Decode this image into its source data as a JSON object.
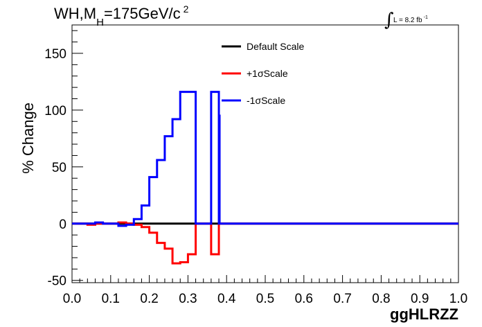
{
  "chart_data": {
    "type": "line",
    "title": "WH,M",
    "title_sub": "H",
    "title_rest": "=175GeV/c",
    "title_sup": "2",
    "lumi_main": "L = 8.2 fb",
    "lumi_sup": "-1",
    "xlabel": "ggHLRZZ",
    "ylabel": "% Change",
    "xlim": [
      0,
      1
    ],
    "ylim": [
      -52,
      175
    ],
    "x_ticks": [
      0.0,
      0.1,
      0.2,
      0.3,
      0.4,
      0.5,
      0.6,
      0.7,
      0.8,
      0.9,
      1.0
    ],
    "x_tick_labels": [
      "0.0",
      "0.1",
      "0.2",
      "0.3",
      "0.4",
      "0.5",
      "0.6",
      "0.7",
      "0.8",
      "0.9",
      "1.0"
    ],
    "y_ticks": [
      -50,
      0,
      50,
      100,
      150
    ],
    "y_tick_labels": [
      "-50",
      "0",
      "50",
      "100",
      "150"
    ],
    "grid": false,
    "legend_position": "top-center",
    "bin_edges": [
      0.0,
      0.02,
      0.04,
      0.06,
      0.08,
      0.1,
      0.12,
      0.14,
      0.16,
      0.18,
      0.2,
      0.22,
      0.24,
      0.26,
      0.28,
      0.3,
      0.32,
      0.34,
      0.36,
      0.38,
      0.4,
      0.42,
      0.44,
      0.46,
      0.48,
      0.5,
      0.52,
      0.54,
      0.56,
      0.58,
      0.6,
      0.62,
      0.64,
      0.66,
      0.68,
      0.7,
      0.72,
      0.74,
      0.76,
      0.78,
      0.8,
      0.82,
      0.84,
      0.86,
      0.88,
      0.9,
      0.92,
      0.94,
      0.96,
      0.98,
      1.0
    ],
    "series": [
      {
        "name": "Default Scale",
        "color": "#000000",
        "values": [
          0,
          0,
          0,
          0,
          0,
          0,
          0,
          0,
          0,
          0,
          0,
          0,
          0,
          0,
          0,
          0,
          0,
          0,
          0,
          0,
          0,
          0,
          0,
          0,
          0,
          0,
          0,
          0,
          0,
          0,
          0,
          0,
          0,
          0,
          0,
          0,
          0,
          0,
          0,
          0,
          0,
          0,
          0,
          0,
          0,
          0,
          0,
          0,
          0,
          0
        ]
      },
      {
        "name": "+1σScale",
        "color": "#ff0000",
        "values": [
          0,
          0,
          -1,
          0,
          0,
          0,
          1,
          0,
          -1,
          -3,
          -8,
          -17,
          -22,
          -35,
          -34,
          -27,
          0,
          0,
          -27,
          0,
          0,
          0,
          0,
          0,
          0,
          0,
          0,
          0,
          0,
          0,
          0,
          0,
          0,
          0,
          0,
          0,
          0,
          0,
          0,
          0,
          0,
          0,
          0,
          0,
          0,
          0,
          0,
          0,
          0,
          0
        ]
      },
      {
        "name": "-1σScale",
        "color": "#0000ff",
        "values": [
          0,
          0,
          0,
          1,
          0,
          0,
          -2,
          -1,
          4,
          16,
          41,
          56,
          77,
          92,
          116,
          116,
          0,
          0,
          116,
          0,
          0,
          0,
          0,
          0,
          0,
          0,
          0,
          0,
          0,
          0,
          0,
          0,
          0,
          0,
          0,
          0,
          0,
          0,
          0,
          0,
          0,
          0,
          0,
          0,
          0,
          0,
          0,
          0,
          0,
          0
        ],
        "last_edge_marker": {
          "x": 0.38,
          "y": 96
        }
      }
    ]
  }
}
